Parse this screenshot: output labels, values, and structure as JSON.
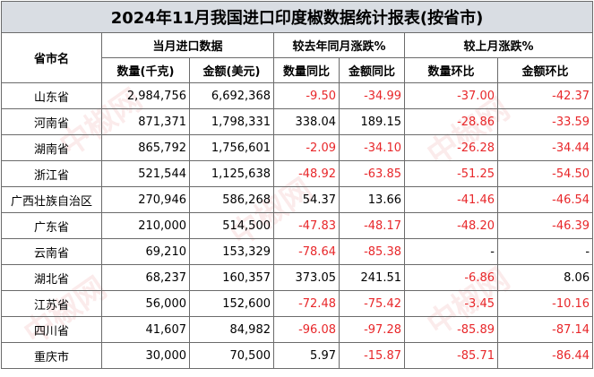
{
  "title": "2024年11月我国进口印度椒数据统计报表(按省市)",
  "headers": {
    "province": "省市名",
    "group_current": "当月进口数据",
    "group_yoy": "较去年同月涨跌%",
    "group_mom": "较上月涨跌%",
    "qty": "数量(千克)",
    "amount": "金额(美元)",
    "qty_yoy": "数量同比",
    "amount_yoy": "金额同比",
    "qty_mom": "数量环比",
    "amount_mom": "金额环比"
  },
  "rows": [
    {
      "province": "山东省",
      "qty": "2,984,756",
      "amount": "6,692,368",
      "qty_yoy": "-9.50",
      "amount_yoy": "-34.99",
      "qty_mom": "-37.00",
      "amount_mom": "-42.37"
    },
    {
      "province": "河南省",
      "qty": "871,371",
      "amount": "1,798,331",
      "qty_yoy": "338.04",
      "amount_yoy": "189.15",
      "qty_mom": "-28.86",
      "amount_mom": "-33.59"
    },
    {
      "province": "湖南省",
      "qty": "865,792",
      "amount": "1,756,601",
      "qty_yoy": "-2.09",
      "amount_yoy": "-34.10",
      "qty_mom": "-26.28",
      "amount_mom": "-34.44"
    },
    {
      "province": "浙江省",
      "qty": "521,544",
      "amount": "1,125,638",
      "qty_yoy": "-48.92",
      "amount_yoy": "-63.85",
      "qty_mom": "-51.25",
      "amount_mom": "-54.50"
    },
    {
      "province": "广西壮族自治区",
      "qty": "270,946",
      "amount": "586,268",
      "qty_yoy": "54.37",
      "amount_yoy": "13.66",
      "qty_mom": "-41.46",
      "amount_mom": "-46.54"
    },
    {
      "province": "广东省",
      "qty": "210,000",
      "amount": "514,500",
      "qty_yoy": "-47.83",
      "amount_yoy": "-48.17",
      "qty_mom": "-48.20",
      "amount_mom": "-46.39"
    },
    {
      "province": "云南省",
      "qty": "69,210",
      "amount": "153,329",
      "qty_yoy": "-78.64",
      "amount_yoy": "-85.38",
      "qty_mom": "-",
      "amount_mom": "-"
    },
    {
      "province": "湖北省",
      "qty": "68,237",
      "amount": "160,357",
      "qty_yoy": "373.05",
      "amount_yoy": "241.51",
      "qty_mom": "-6.86",
      "amount_mom": "8.06"
    },
    {
      "province": "江苏省",
      "qty": "56,000",
      "amount": "152,600",
      "qty_yoy": "-72.48",
      "amount_yoy": "-75.42",
      "qty_mom": "-3.45",
      "amount_mom": "-10.16"
    },
    {
      "province": "四川省",
      "qty": "41,607",
      "amount": "84,982",
      "qty_yoy": "-96.08",
      "amount_yoy": "-97.28",
      "qty_mom": "-85.89",
      "amount_mom": "-87.14"
    },
    {
      "province": "重庆市",
      "qty": "30,000",
      "amount": "70,500",
      "qty_yoy": "5.97",
      "amount_yoy": "-15.87",
      "qty_mom": "-85.71",
      "amount_mom": "-86.44"
    }
  ],
  "watermark": "中椒网",
  "colors": {
    "negative": "#e8272a",
    "title_bg": "#d9dde3",
    "border": "#6b6b6b"
  }
}
